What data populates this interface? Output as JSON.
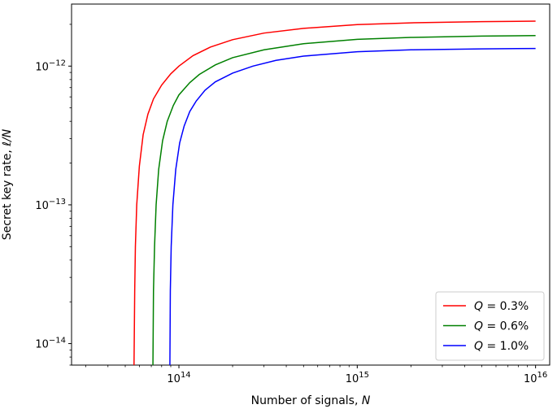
{
  "chart_data": {
    "type": "line",
    "xscale": "log",
    "yscale": "log",
    "xlim": [
      25000000000000,
      12000000000000000
    ],
    "ylim": [
      7e-15,
      2.8e-12
    ],
    "xlabel_text": "Number of signals, ",
    "xlabel_var": "N",
    "ylabel_text": "Secret key rate, ",
    "ylabel_var": "ℓ/N",
    "x_ticks": [
      {
        "value": 100000000000000,
        "base": "10",
        "exp": "14"
      },
      {
        "value": 1000000000000000,
        "base": "10",
        "exp": "15"
      },
      {
        "value": 10000000000000000,
        "base": "10",
        "exp": "16"
      }
    ],
    "y_ticks": [
      {
        "value": 1e-14,
        "base": "10",
        "exp": "−14"
      },
      {
        "value": 1e-13,
        "base": "10",
        "exp": "−13"
      },
      {
        "value": 1e-12,
        "base": "10",
        "exp": "−12"
      }
    ],
    "legend_position": "lower-right",
    "grid": false,
    "series": [
      {
        "name": "Q = 0.3%",
        "legend_var": "Q",
        "legend_val": " = 0.3%",
        "color": "#ff0000",
        "x": [
          56000000000000,
          56500000000000,
          57000000000000,
          58000000000000,
          60000000000000,
          63000000000000,
          67000000000000,
          72000000000000,
          80000000000000,
          90000000000000,
          100000000000000,
          120000000000000,
          150000000000000,
          200000000000000,
          300000000000000,
          500000000000000,
          1000000000000000,
          2000000000000000,
          5000000000000000,
          10000000000000000
        ],
        "y": [
          7e-15,
          2.4e-14,
          5e-14,
          1e-13,
          1.9e-13,
          3.2e-13,
          4.5e-13,
          5.8e-13,
          7.3e-13,
          8.8e-13,
          1e-12,
          1.19e-12,
          1.37e-12,
          1.55e-12,
          1.73e-12,
          1.87e-12,
          1.99e-12,
          2.05e-12,
          2.09e-12,
          2.11e-12
        ]
      },
      {
        "name": "Q = 0.6%",
        "legend_var": "Q",
        "legend_val": " = 0.6%",
        "color": "#008000",
        "x": [
          71500000000000,
          72000000000000,
          73000000000000,
          74500000000000,
          77000000000000,
          81000000000000,
          86000000000000,
          93000000000000,
          100000000000000,
          115000000000000,
          130000000000000,
          160000000000000,
          200000000000000,
          300000000000000,
          500000000000000,
          1000000000000000,
          2000000000000000,
          5000000000000000,
          10000000000000000
        ],
        "y": [
          7e-15,
          2.4e-14,
          5e-14,
          1e-13,
          1.8e-13,
          2.9e-13,
          4e-13,
          5.2e-13,
          6.2e-13,
          7.6e-13,
          8.7e-13,
          1.02e-12,
          1.15e-12,
          1.31e-12,
          1.45e-12,
          1.56e-12,
          1.61e-12,
          1.645e-12,
          1.66e-12
        ]
      },
      {
        "name": "Q = 1.0%",
        "legend_var": "Q",
        "legend_val": " = 1.0%",
        "color": "#0000ff",
        "x": [
          89000000000000,
          89500000000000,
          90500000000000,
          92500000000000,
          96000000000000,
          101000000000000,
          107000000000000,
          115000000000000,
          125000000000000,
          140000000000000,
          160000000000000,
          200000000000000,
          260000000000000,
          350000000000000,
          500000000000000,
          1000000000000000,
          2000000000000000,
          5000000000000000,
          10000000000000000
        ],
        "y": [
          7e-15,
          2.4e-14,
          5e-14,
          1e-13,
          1.8e-13,
          2.8e-13,
          3.7e-13,
          4.7e-13,
          5.6e-13,
          6.7e-13,
          7.7e-13,
          8.9e-13,
          1e-12,
          1.1e-12,
          1.18e-12,
          1.27e-12,
          1.31e-12,
          1.33e-12,
          1.34e-12
        ]
      }
    ]
  }
}
